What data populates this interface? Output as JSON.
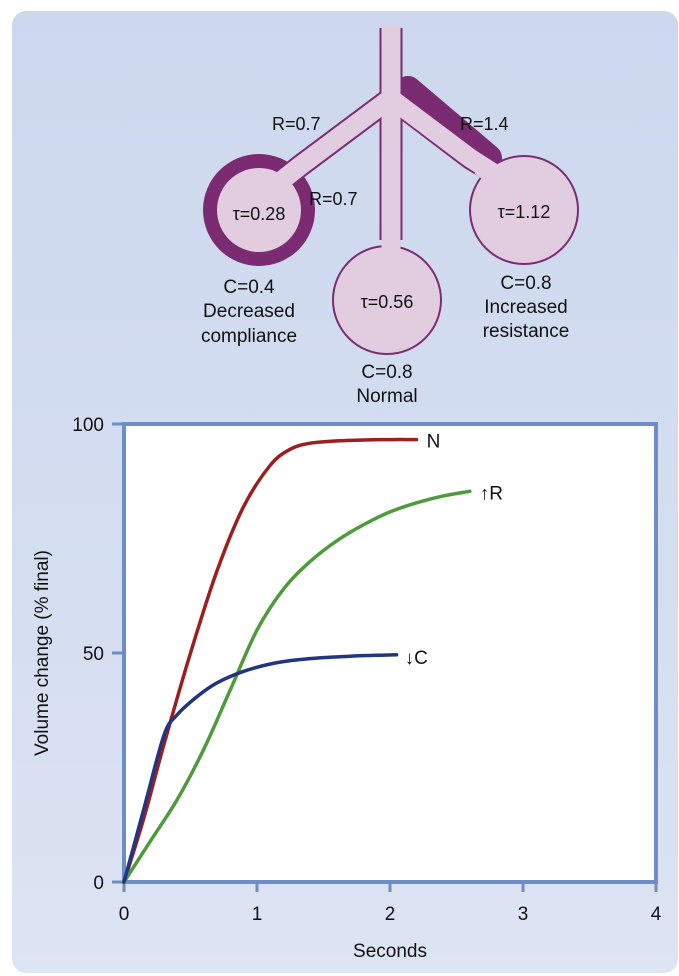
{
  "diagram": {
    "resistance_left": "R=0.7",
    "resistance_right": "R=1.4",
    "resistance_middle": "R=0.7",
    "tau_left": "τ=0.28",
    "tau_middle": "τ=0.56",
    "tau_right": "τ=1.12",
    "left_compliance": "C=0.4",
    "left_desc_1": "Decreased",
    "left_desc_2": "compliance",
    "middle_compliance": "C=0.8",
    "middle_desc": "Normal",
    "right_compliance": "C=0.8",
    "right_desc_1": "Increased",
    "right_desc_2": "resistance"
  },
  "colors": {
    "panel": "#d3dcf0",
    "alveolus_fill": "#e2ccdf",
    "alveolus_stroke": "#7b2b72",
    "plot_border": "#6e8dc7",
    "series_N": "#9c1f1f",
    "series_R": "#4e9a3c",
    "series_C": "#22357f"
  },
  "chart_data": {
    "type": "line",
    "xlabel": "Seconds",
    "ylabel": "Volume change (% final)",
    "xlim": [
      0,
      4
    ],
    "ylim": [
      0,
      100
    ],
    "xticks": [
      "0",
      "1",
      "2",
      "3",
      "4"
    ],
    "yticks": [
      "0",
      "50",
      "100"
    ],
    "grid": false,
    "series": [
      {
        "name": "N",
        "color": "#9c1f1f",
        "x": [
          0,
          0.15,
          0.3,
          0.5,
          0.7,
          0.9,
          1.1,
          1.25,
          1.4,
          1.6,
          1.8,
          2.0,
          2.2
        ],
        "y": [
          0,
          14,
          30,
          50,
          68,
          82,
          91,
          94.5,
          95.8,
          96.3,
          96.5,
          96.6,
          96.6
        ]
      },
      {
        "name": "↑R",
        "color": "#4e9a3c",
        "x": [
          0,
          0.2,
          0.4,
          0.6,
          0.8,
          1.0,
          1.2,
          1.4,
          1.6,
          1.8,
          2.0,
          2.2,
          2.4,
          2.6
        ],
        "y": [
          0,
          9,
          18,
          29,
          42,
          55,
          64,
          70,
          74.5,
          78,
          80.8,
          82.8,
          84.3,
          85.3
        ]
      },
      {
        "name": "↓C",
        "color": "#22357f",
        "x": [
          0,
          0.15,
          0.3,
          0.4,
          0.55,
          0.7,
          0.9,
          1.1,
          1.3,
          1.5,
          1.7,
          1.9,
          2.05
        ],
        "y": [
          0,
          16,
          32,
          36.5,
          40.5,
          43.5,
          46,
          47.6,
          48.5,
          49,
          49.3,
          49.5,
          49.6
        ]
      }
    ]
  }
}
